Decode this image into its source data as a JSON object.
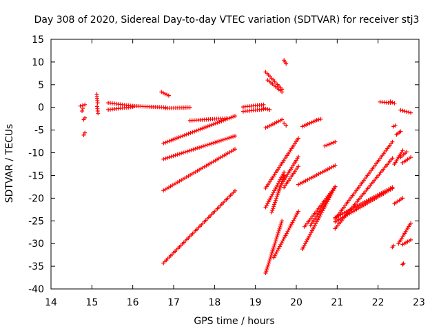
{
  "chart_data": {
    "type": "scatter",
    "title": "Day 308 of 2020, Sidereal Day-to-day VTEC variation (SDTVAR) for receiver stj3",
    "xlabel": "GPS time / hours",
    "ylabel": "SDTVAR / TECUs",
    "xlim": [
      14,
      23
    ],
    "ylim": [
      -40,
      15
    ],
    "xticks": [
      14,
      15,
      16,
      17,
      18,
      19,
      20,
      21,
      22,
      23
    ],
    "yticks": [
      15,
      10,
      5,
      0,
      -5,
      -10,
      -15,
      -20,
      -25,
      -30,
      -35,
      -40
    ],
    "grid": false,
    "legend": "none",
    "marker": "plus",
    "color": "#ff0000",
    "tracks": [
      {
        "x": [
          14.72,
          14.83
        ],
        "y": [
          0.3,
          0.6
        ]
      },
      {
        "x": [
          14.76,
          14.78
        ],
        "y": [
          -0.8,
          -0.2
        ]
      },
      {
        "x": [
          14.8,
          14.83
        ],
        "y": [
          -2.7,
          -2.3
        ]
      },
      {
        "x": [
          14.8,
          14.83
        ],
        "y": [
          -6.1,
          -5.6
        ]
      },
      {
        "x": [
          15.12,
          15.14
        ],
        "y": [
          2.9,
          1.0
        ]
      },
      {
        "x": [
          15.13,
          15.15
        ],
        "y": [
          0.2,
          -1.3
        ]
      },
      {
        "x": [
          15.4,
          16.0
        ],
        "y": [
          1.0,
          0.3
        ]
      },
      {
        "x": [
          15.4,
          16.0
        ],
        "y": [
          -0.5,
          0.1
        ]
      },
      {
        "x": [
          16.0,
          16.8
        ],
        "y": [
          0.3,
          0.0
        ]
      },
      {
        "x": [
          16.8,
          17.4
        ],
        "y": [
          -0.2,
          0.0
        ]
      },
      {
        "x": [
          16.7,
          16.88
        ],
        "y": [
          3.4,
          2.6
        ]
      },
      {
        "x": [
          17.4,
          18.3
        ],
        "y": [
          -2.9,
          -2.4
        ]
      },
      {
        "x": [
          16.75,
          18.5
        ],
        "y": [
          -7.9,
          -1.9
        ]
      },
      {
        "x": [
          16.75,
          18.5
        ],
        "y": [
          -11.4,
          -6.3
        ]
      },
      {
        "x": [
          16.75,
          18.5
        ],
        "y": [
          -18.3,
          -9.2
        ]
      },
      {
        "x": [
          16.75,
          18.5
        ],
        "y": [
          -34.3,
          -18.4
        ]
      },
      {
        "x": [
          18.7,
          19.2
        ],
        "y": [
          0.1,
          0.6
        ]
      },
      {
        "x": [
          18.7,
          19.2
        ],
        "y": [
          -0.9,
          -0.4
        ]
      },
      {
        "x": [
          19.2,
          19.35
        ],
        "y": [
          -0.2,
          -0.5
        ]
      },
      {
        "x": [
          19.25,
          19.65
        ],
        "y": [
          7.8,
          4.0
        ]
      },
      {
        "x": [
          19.3,
          19.65
        ],
        "y": [
          6.0,
          3.4
        ]
      },
      {
        "x": [
          19.7,
          19.75
        ],
        "y": [
          10.4,
          9.6
        ]
      },
      {
        "x": [
          19.25,
          19.65
        ],
        "y": [
          -4.5,
          -2.7
        ]
      },
      {
        "x": [
          19.7,
          19.75
        ],
        "y": [
          -3.5,
          -4.0
        ]
      },
      {
        "x": [
          20.15,
          20.5
        ],
        "y": [
          -4.2,
          -2.8
        ]
      },
      {
        "x": [
          20.5,
          20.6
        ],
        "y": [
          -2.8,
          -2.6
        ]
      },
      {
        "x": [
          20.7,
          20.95
        ],
        "y": [
          -8.5,
          -7.6
        ]
      },
      {
        "x": [
          19.25,
          20.05
        ],
        "y": [
          -17.8,
          -6.8
        ]
      },
      {
        "x": [
          19.25,
          19.7
        ],
        "y": [
          -22.0,
          -14.3
        ]
      },
      {
        "x": [
          19.4,
          19.7
        ],
        "y": [
          -23.1,
          -15.0
        ]
      },
      {
        "x": [
          19.6,
          20.05
        ],
        "y": [
          -17.5,
          -10.9
        ]
      },
      {
        "x": [
          19.7,
          20.05
        ],
        "y": [
          -17.6,
          -13.0
        ]
      },
      {
        "x": [
          20.05,
          20.95
        ],
        "y": [
          -17.0,
          -12.8
        ]
      },
      {
        "x": [
          19.25,
          19.65
        ],
        "y": [
          -36.5,
          -25.0
        ]
      },
      {
        "x": [
          19.45,
          20.05
        ],
        "y": [
          -33.1,
          -22.9
        ]
      },
      {
        "x": [
          20.15,
          20.95
        ],
        "y": [
          -31.2,
          -17.5
        ]
      },
      {
        "x": [
          20.2,
          20.95
        ],
        "y": [
          -26.3,
          -17.5
        ]
      },
      {
        "x": [
          20.35,
          20.95
        ],
        "y": [
          -26.0,
          -17.5
        ]
      },
      {
        "x": [
          20.95,
          22.35
        ],
        "y": [
          -24.6,
          -7.6
        ]
      },
      {
        "x": [
          20.95,
          22.35
        ],
        "y": [
          -26.7,
          -11.2
        ]
      },
      {
        "x": [
          20.95,
          22.35
        ],
        "y": [
          -25.2,
          -17.9
        ]
      },
      {
        "x": [
          20.95,
          22.35
        ],
        "y": [
          -24.3,
          -17.6
        ]
      },
      {
        "x": [
          22.05,
          22.3
        ],
        "y": [
          1.2,
          1.0
        ]
      },
      {
        "x": [
          22.3,
          22.4
        ],
        "y": [
          1.3,
          0.9
        ]
      },
      {
        "x": [
          22.55,
          22.8
        ],
        "y": [
          -0.6,
          -1.2
        ]
      },
      {
        "x": [
          22.38,
          22.42
        ],
        "y": [
          -4.2,
          -4.0
        ]
      },
      {
        "x": [
          22.45,
          22.55
        ],
        "y": [
          -6.0,
          -5.3
        ]
      },
      {
        "x": [
          22.4,
          22.6
        ],
        "y": [
          -12.5,
          -9.5
        ]
      },
      {
        "x": [
          22.55,
          22.7
        ],
        "y": [
          -11.0,
          -9.8
        ]
      },
      {
        "x": [
          22.6,
          22.8
        ],
        "y": [
          -12.2,
          -11.0
        ]
      },
      {
        "x": [
          22.4,
          22.6
        ],
        "y": [
          -21.2,
          -20.0
        ]
      },
      {
        "x": [
          22.5,
          22.8
        ],
        "y": [
          -30.0,
          -25.5
        ]
      },
      {
        "x": [
          22.6,
          22.8
        ],
        "y": [
          -30.2,
          -29.2
        ]
      },
      {
        "x": [
          22.35,
          22.38
        ],
        "y": [
          -30.8,
          -30.5
        ]
      },
      {
        "x": [
          22.6,
          22.62
        ],
        "y": [
          -34.6,
          -34.4
        ]
      }
    ]
  }
}
